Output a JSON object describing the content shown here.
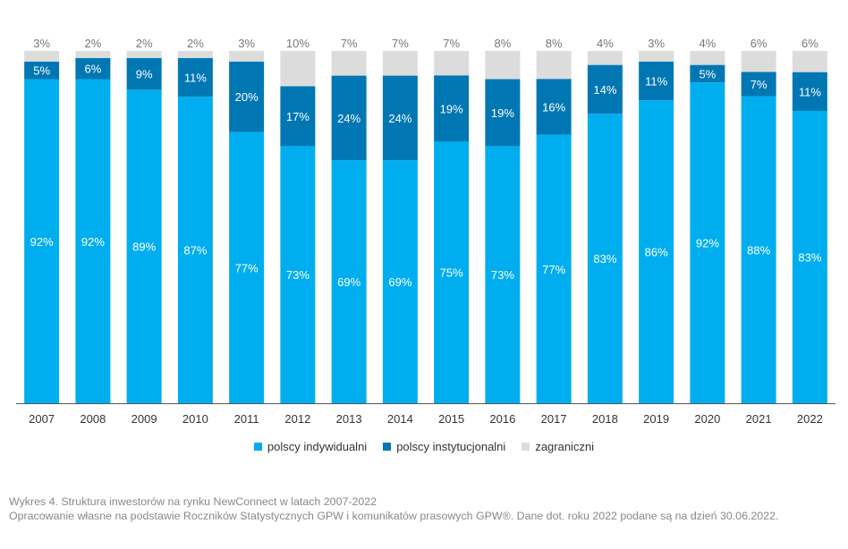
{
  "colors": {
    "polscy_indywidualni": "#00aeef",
    "polscy_instytucjonalni": "#0077b3",
    "zagraniczni": "#dcdcdc"
  },
  "chart_data": {
    "type": "bar",
    "stacked": true,
    "categories": [
      "2007",
      "2008",
      "2009",
      "2010",
      "2011",
      "2012",
      "2013",
      "2014",
      "2015",
      "2016",
      "2017",
      "2018",
      "2019",
      "2020",
      "2021",
      "2022"
    ],
    "series": [
      {
        "name": "polscy indywidualni",
        "color": "#00aeef",
        "values": [
          92,
          92,
          89,
          87,
          77,
          73,
          69,
          69,
          75,
          73,
          77,
          83,
          86,
          92,
          88,
          83
        ]
      },
      {
        "name": "polscy instytucjonalni",
        "color": "#0077b3",
        "values": [
          5,
          6,
          9,
          11,
          20,
          17,
          24,
          24,
          19,
          19,
          16,
          14,
          11,
          5,
          7,
          11
        ]
      },
      {
        "name": "zagraniczni",
        "color": "#dcdcdc",
        "values": [
          3,
          2,
          2,
          2,
          3,
          10,
          7,
          7,
          7,
          8,
          8,
          4,
          3,
          4,
          6,
          6
        ]
      }
    ],
    "ylim": [
      0,
      100
    ],
    "value_suffix": "%",
    "grid": false,
    "legend_position": "bottom"
  },
  "caption": {
    "title": "Wykres 4. Struktura inwestorów na rynku NewConnect w latach 2007-2022",
    "source": "Opracowanie własne na podstawie Roczników Statystycznych GPW i komunikatów prasowych GPW®. Dane dot. roku 2022 podane są na dzień 30.06.2022."
  }
}
